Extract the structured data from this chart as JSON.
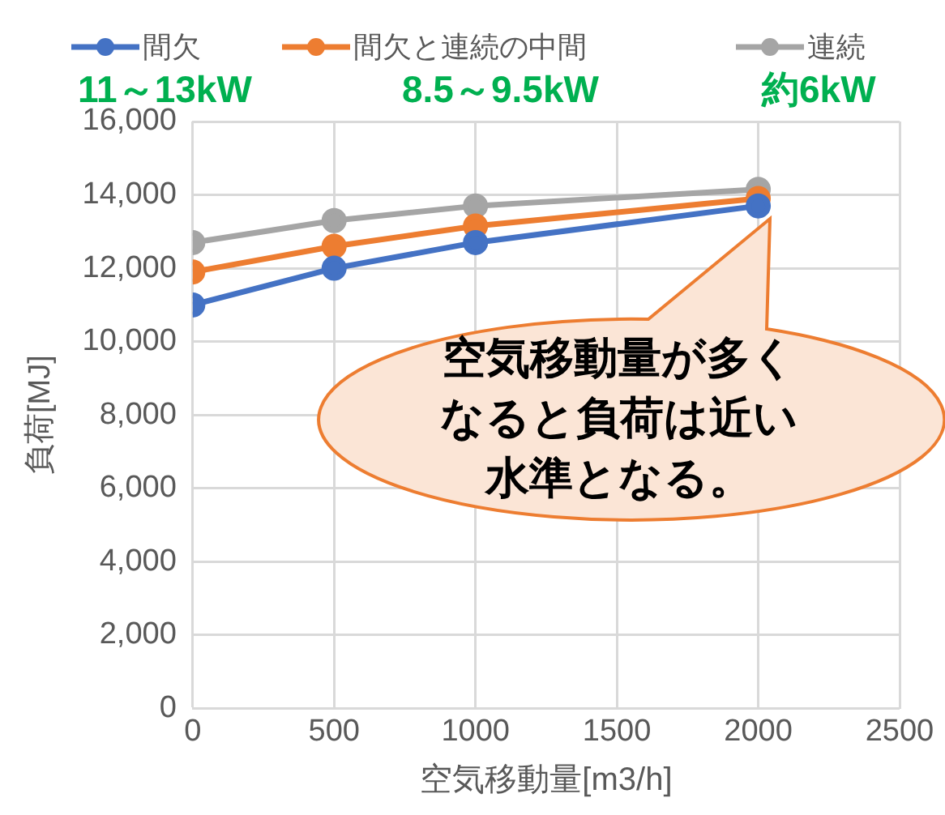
{
  "chart_data": {
    "type": "line",
    "xlabel": "空気移動量[m3/h]",
    "ylabel": "負荷[MJ]",
    "x": [
      0,
      500,
      1000,
      2000
    ],
    "series": [
      {
        "name": "間欠",
        "color": "#4472c4",
        "values": [
          11000,
          12000,
          12700,
          13700
        ]
      },
      {
        "name": "間欠と連続の中間",
        "color": "#ed7d31",
        "values": [
          11900,
          12600,
          13150,
          13900
        ]
      },
      {
        "name": "連続",
        "color": "#a5a5a5",
        "values": [
          12700,
          13300,
          13700,
          14150
        ]
      }
    ],
    "xlim": [
      0,
      2500
    ],
    "xticks": [
      0,
      500,
      {
        "value": 1000,
        "label": "1000"
      },
      {
        "value": 1500,
        "label": "1500"
      },
      {
        "value": 2000,
        "label": "2000"
      },
      {
        "value": 2500,
        "label": "2500"
      }
    ],
    "ylim": [
      0,
      16000
    ],
    "yticks": [
      0,
      {
        "value": 2000,
        "label": "2,000"
      },
      {
        "value": 4000,
        "label": "4,000"
      },
      {
        "value": 6000,
        "label": "6,000"
      },
      {
        "value": 8000,
        "label": "8,000"
      },
      {
        "value": 10000,
        "label": "10,000"
      },
      {
        "value": 12000,
        "label": "12,000"
      },
      {
        "value": 14000,
        "label": "14,000"
      },
      {
        "value": 16000,
        "label": "16,000"
      }
    ],
    "grid": true,
    "legend": "top",
    "marker": "circle",
    "line_style": "solid",
    "annotations": [
      "11～13kW",
      "8.5～9.5kW",
      "約6kW",
      "空気移動量が多くなると負荷は近い水準となる。"
    ]
  }
}
